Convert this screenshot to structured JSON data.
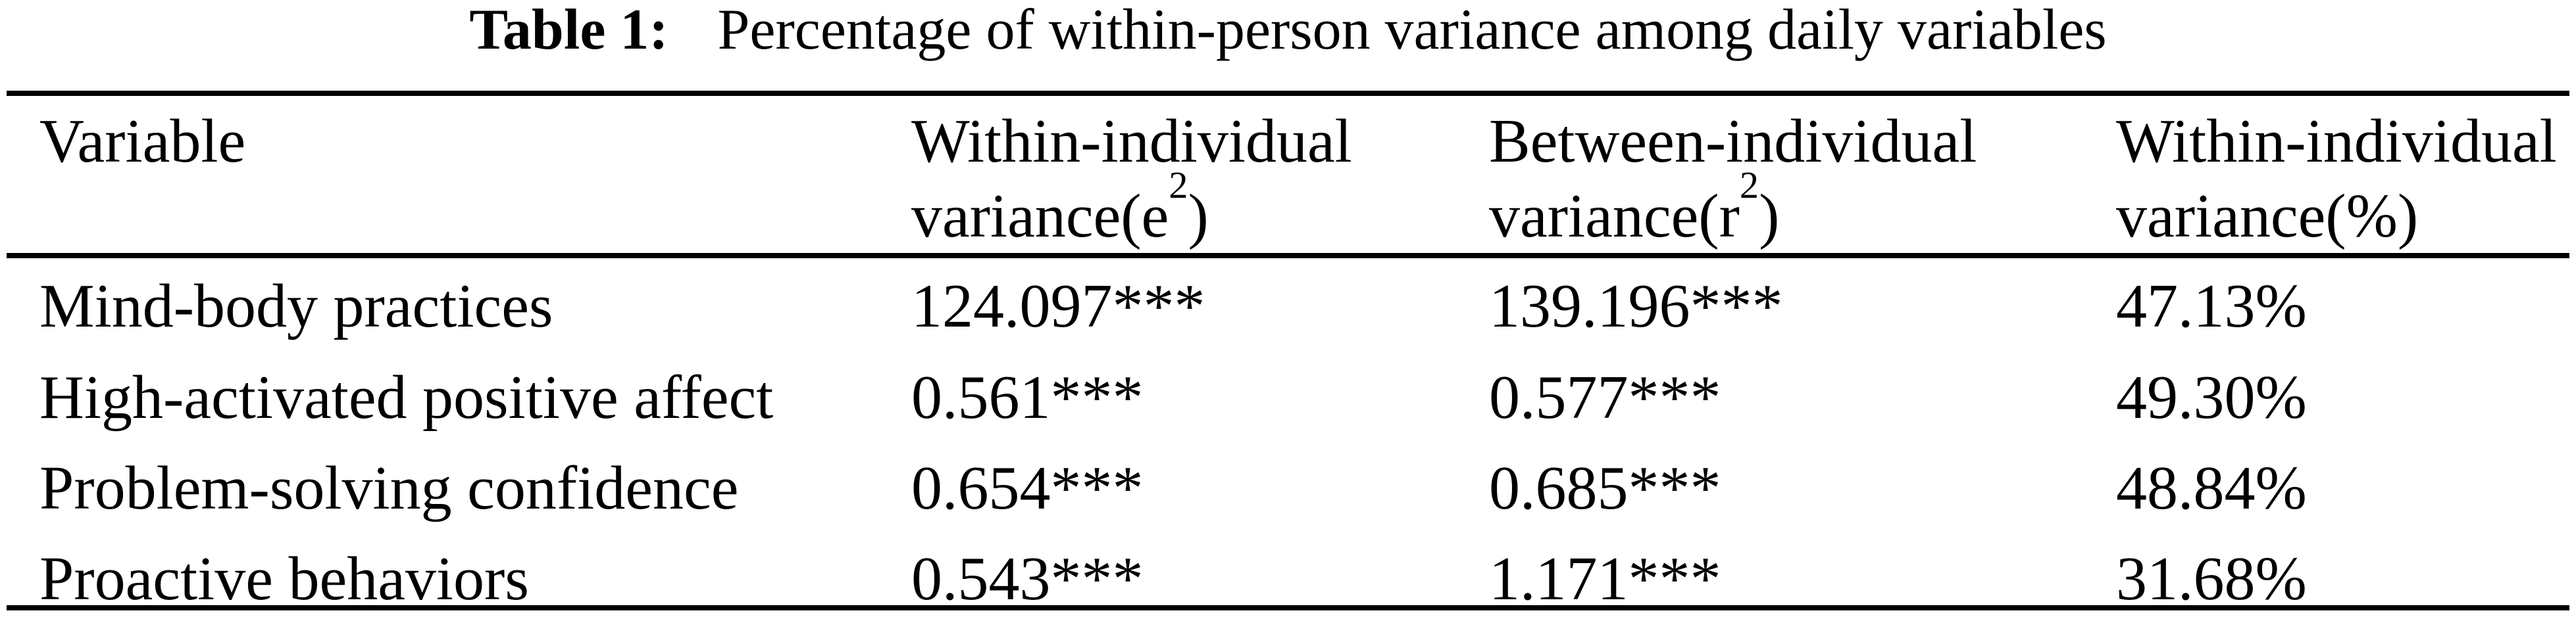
{
  "title": {
    "label": "Table 1:",
    "text": "Percentage of within-person variance among daily variables"
  },
  "colors": {
    "background": "#ffffff",
    "text": "#000000",
    "rule": "#000000"
  },
  "table": {
    "columns": [
      {
        "header_line1": "Variable"
      },
      {
        "header_line1": "Within-individual",
        "header_line2_base": "variance(e",
        "header_line2_sup": "2",
        "header_line2_end": ")"
      },
      {
        "header_line1": "Between-individual",
        "header_line2_base": "variance(r",
        "header_line2_sup": "2",
        "header_line2_end": ")"
      },
      {
        "header_line1": "Within-individual",
        "header_line2_base": "variance(%",
        "header_line2_sup": "",
        "header_line2_end": ")"
      }
    ],
    "rows": [
      {
        "variable": "Mind-body practices",
        "within_variance": "124.097***",
        "between_variance": "139.196***",
        "within_pct": "47.13%"
      },
      {
        "variable": "High-activated positive affect",
        "within_variance": "0.561***",
        "between_variance": "0.577***",
        "within_pct": "49.30%"
      },
      {
        "variable": "Problem-solving confidence",
        "within_variance": "0.654***",
        "between_variance": "0.685***",
        "within_pct": "48.84%"
      },
      {
        "variable": "Proactive behaviors",
        "within_variance": "0.543***",
        "between_variance": "1.171***",
        "within_pct": "31.68%"
      }
    ]
  }
}
